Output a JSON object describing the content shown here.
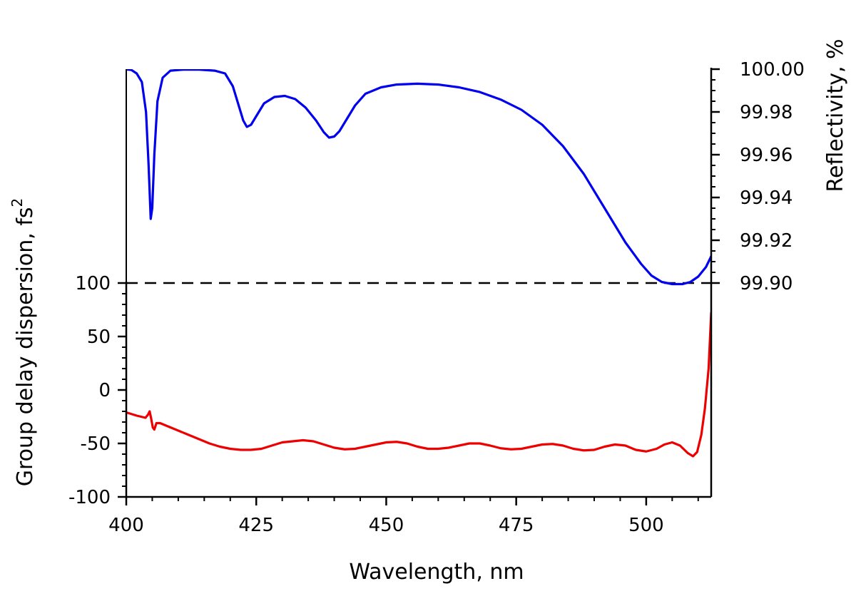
{
  "chart_data": {
    "type": "line",
    "xlabel": "Wavelength, nm",
    "ylabel_left": "Group delay dispersion, fs",
    "ylabel_left_sup": "2",
    "ylabel_right": "Reflectivity, %",
    "x_range": [
      400,
      512.5
    ],
    "left_axis": {
      "range": [
        -100,
        100
      ],
      "ticks": [
        100,
        50,
        0,
        -50,
        -100
      ],
      "tick_labels": [
        "100",
        "50",
        "0",
        "-50",
        "-100"
      ]
    },
    "right_axis": {
      "range": [
        99.9,
        100.0
      ],
      "ticks": [
        100.0,
        99.98,
        99.96,
        99.94,
        99.92,
        99.9
      ],
      "tick_labels": [
        "100.00",
        "99.98",
        "99.96",
        "99.94",
        "99.92",
        "99.90"
      ]
    },
    "x_ticks": [
      400,
      425,
      450,
      475,
      500
    ],
    "x_tick_labels": [
      "400",
      "425",
      "450",
      "475",
      "500"
    ],
    "reference_line": {
      "axis": "left",
      "value": 100,
      "style": "dashed",
      "color": "#000000"
    },
    "series": [
      {
        "axis": "right",
        "color": "#0000ee",
        "points": [
          [
            400.0,
            99.9999
          ],
          [
            401.0,
            99.9996
          ],
          [
            402.0,
            99.998
          ],
          [
            403.0,
            99.994
          ],
          [
            403.8,
            99.98
          ],
          [
            404.3,
            99.955
          ],
          [
            404.7,
            99.93
          ],
          [
            405.0,
            99.935
          ],
          [
            405.4,
            99.96
          ],
          [
            406.0,
            99.985
          ],
          [
            407.0,
            99.996
          ],
          [
            408.5,
            99.9993
          ],
          [
            411.0,
            99.9998
          ],
          [
            414.0,
            99.9998
          ],
          [
            417.0,
            99.9993
          ],
          [
            419.0,
            99.998
          ],
          [
            420.5,
            99.992
          ],
          [
            421.5,
            99.984
          ],
          [
            422.5,
            99.976
          ],
          [
            423.2,
            99.973
          ],
          [
            424.0,
            99.974
          ],
          [
            425.0,
            99.978
          ],
          [
            426.5,
            99.984
          ],
          [
            428.5,
            99.987
          ],
          [
            430.5,
            99.9875
          ],
          [
            432.5,
            99.986
          ],
          [
            434.5,
            99.982
          ],
          [
            436.5,
            99.976
          ],
          [
            438.0,
            99.9705
          ],
          [
            439.0,
            99.968
          ],
          [
            440.0,
            99.9685
          ],
          [
            441.0,
            99.971
          ],
          [
            442.5,
            99.977
          ],
          [
            444.0,
            99.983
          ],
          [
            446.0,
            99.9885
          ],
          [
            449.0,
            99.9915
          ],
          [
            452.0,
            99.9928
          ],
          [
            456.0,
            99.9932
          ],
          [
            460.0,
            99.9928
          ],
          [
            464.0,
            99.9915
          ],
          [
            468.0,
            99.9893
          ],
          [
            472.0,
            99.9858
          ],
          [
            476.0,
            99.981
          ],
          [
            480.0,
            99.974
          ],
          [
            484.0,
            99.964
          ],
          [
            488.0,
            99.951
          ],
          [
            492.0,
            99.935
          ],
          [
            496.0,
            99.919
          ],
          [
            499.0,
            99.909
          ],
          [
            501.0,
            99.9035
          ],
          [
            503.0,
            99.9005
          ],
          [
            505.0,
            99.8995
          ],
          [
            507.0,
            99.8995
          ],
          [
            508.5,
            99.9005
          ],
          [
            510.0,
            99.903
          ],
          [
            511.5,
            99.9075
          ],
          [
            512.5,
            99.9125
          ]
        ]
      },
      {
        "axis": "left",
        "color": "#ee0000",
        "points": [
          [
            400.0,
            -21
          ],
          [
            402.0,
            -24
          ],
          [
            403.7,
            -26
          ],
          [
            404.2,
            -23
          ],
          [
            404.5,
            -20
          ],
          [
            404.8,
            -27
          ],
          [
            405.1,
            -35
          ],
          [
            405.4,
            -37
          ],
          [
            405.8,
            -31
          ],
          [
            406.5,
            -31
          ],
          [
            408.0,
            -34
          ],
          [
            410.0,
            -38
          ],
          [
            412.0,
            -42
          ],
          [
            414.0,
            -46
          ],
          [
            416.0,
            -50
          ],
          [
            418.0,
            -53
          ],
          [
            420.0,
            -55
          ],
          [
            422.0,
            -56
          ],
          [
            424.0,
            -56
          ],
          [
            426.0,
            -55
          ],
          [
            428.0,
            -52
          ],
          [
            430.0,
            -49
          ],
          [
            432.0,
            -48
          ],
          [
            434.0,
            -47
          ],
          [
            436.0,
            -48
          ],
          [
            438.0,
            -51
          ],
          [
            440.0,
            -54
          ],
          [
            442.0,
            -55.5
          ],
          [
            444.0,
            -55
          ],
          [
            446.0,
            -53
          ],
          [
            448.0,
            -51
          ],
          [
            450.0,
            -49
          ],
          [
            452.0,
            -48.5
          ],
          [
            454.0,
            -50
          ],
          [
            456.0,
            -53
          ],
          [
            458.0,
            -55
          ],
          [
            460.0,
            -55
          ],
          [
            462.0,
            -54
          ],
          [
            464.0,
            -52
          ],
          [
            466.0,
            -50
          ],
          [
            468.0,
            -50
          ],
          [
            470.0,
            -52
          ],
          [
            472.0,
            -54.5
          ],
          [
            474.0,
            -55.5
          ],
          [
            476.0,
            -55
          ],
          [
            478.0,
            -53
          ],
          [
            480.0,
            -51
          ],
          [
            482.0,
            -50.5
          ],
          [
            484.0,
            -52
          ],
          [
            486.0,
            -55
          ],
          [
            488.0,
            -56.5
          ],
          [
            490.0,
            -56
          ],
          [
            492.0,
            -53
          ],
          [
            494.0,
            -51
          ],
          [
            496.0,
            -52
          ],
          [
            498.0,
            -56
          ],
          [
            500.0,
            -57.5
          ],
          [
            502.0,
            -55
          ],
          [
            503.5,
            -51
          ],
          [
            505.0,
            -49
          ],
          [
            506.5,
            -52
          ],
          [
            508.0,
            -59
          ],
          [
            509.0,
            -62
          ],
          [
            509.8,
            -58
          ],
          [
            510.6,
            -42
          ],
          [
            511.3,
            -17
          ],
          [
            512.0,
            20
          ],
          [
            512.5,
            72
          ]
        ]
      }
    ]
  }
}
